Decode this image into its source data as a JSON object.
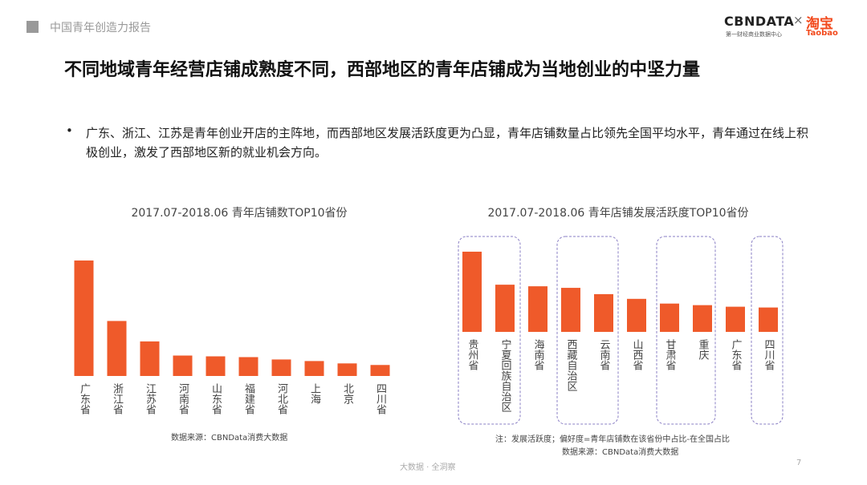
{
  "header": {
    "report": "中国青年创造力报告",
    "logo": "CBNDATA",
    "logo_separator": "×",
    "logo_sub": "第一财经商业数据中心",
    "partner": "淘宝",
    "partner_en": "Taobao"
  },
  "title": "不同地域青年经营店铺成熟度不同，西部地区的青年店铺成为当地创业的中坚力量",
  "bullet": "广东、浙江、江苏是青年创业开店的主阵地，而西部地区发展活跃度更为凸显，青年店铺数量占比领先全国平均水平，青年通过在线上积极创业，激发了西部地区新的就业机会方向。",
  "chart_data": [
    {
      "type": "bar",
      "title": "2017.07-2018.06 青年店铺数TOP10省份",
      "categories": [
        "广东省",
        "浙江省",
        "江苏省",
        "河南省",
        "山东省",
        "福建省",
        "河北省",
        "上海",
        "北京",
        "四川省"
      ],
      "values": [
        147,
        70,
        44,
        26,
        25,
        24,
        21,
        19,
        16,
        14
      ],
      "color": "#ef5a2a",
      "ylim": [
        0,
        150
      ],
      "notes": [
        "数据来源：CBNData消费大数据"
      ]
    },
    {
      "type": "bar",
      "title": "2017.07-2018.06 青年店铺发展活跃度TOP10省份",
      "categories": [
        "贵州省",
        "宁夏回族自治区",
        "海南省",
        "西藏自治区",
        "云南省",
        "山西省",
        "甘肃省",
        "重庆",
        "广东省",
        "四川省"
      ],
      "values": [
        102,
        60,
        58,
        56,
        48,
        42,
        36,
        34,
        32,
        31
      ],
      "color": "#ef5a2a",
      "ylim": [
        0,
        105
      ],
      "notes": [
        "注：发展活跃度；偏好度=青年店铺数在该省份中占比-在全国占比",
        "数据来源：CBNData消费大数据"
      ]
    }
  ]
}
